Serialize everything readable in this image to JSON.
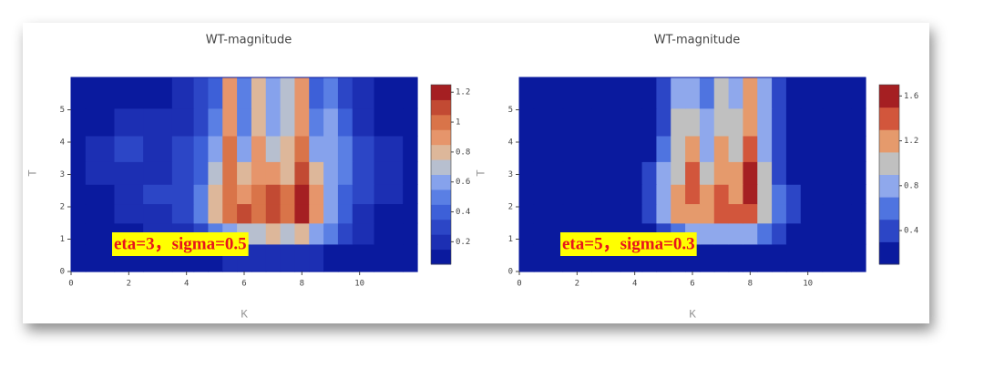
{
  "chart_data": [
    {
      "type": "contour",
      "title": "WT-magnitude",
      "xlabel": "K",
      "ylabel": "T",
      "annotation": "eta=3，sigma=0.5",
      "xlim": [
        0,
        12
      ],
      "ylim": [
        0,
        6
      ],
      "xticks": [
        0,
        2,
        4,
        6,
        8,
        10
      ],
      "yticks": [
        0,
        1,
        2,
        3,
        4,
        5
      ],
      "zlim": [
        0.05,
        1.25
      ],
      "colorbar_ticks": [
        0.2,
        0.4,
        0.6,
        0.8,
        1,
        1.2
      ],
      "colors": [
        "#0a1a9e",
        "#1c2fb3",
        "#2c46c6",
        "#3d60d8",
        "#5a7fe4",
        "#86a2ec",
        "#b7bfcf",
        "#ddb79a",
        "#e6956b",
        "#d97449",
        "#c24a33",
        "#a51f22"
      ],
      "x": [
        0,
        1,
        2,
        3,
        4,
        4.5,
        5,
        5.5,
        6,
        6.5,
        7,
        7.5,
        8,
        8.5,
        9,
        9.5,
        10,
        11,
        12
      ],
      "y": [
        0.5,
        1.2,
        1.8,
        2.4,
        3,
        3.8,
        4.6,
        5.5
      ],
      "z": [
        [
          0.05,
          0.05,
          0.05,
          0.05,
          0.08,
          0.1,
          0.12,
          0.15,
          0.15,
          0.15,
          0.15,
          0.15,
          0.15,
          0.15,
          0.12,
          0.1,
          0.08,
          0.06,
          0.05
        ],
        [
          0.08,
          0.1,
          0.12,
          0.15,
          0.2,
          0.3,
          0.45,
          0.6,
          0.7,
          0.7,
          0.75,
          0.7,
          0.75,
          0.6,
          0.45,
          0.3,
          0.2,
          0.12,
          0.1
        ],
        [
          0.1,
          0.12,
          0.15,
          0.2,
          0.3,
          0.5,
          0.8,
          1.0,
          1.05,
          1.0,
          1.1,
          1.0,
          1.15,
          0.9,
          0.6,
          0.35,
          0.2,
          0.12,
          0.1
        ],
        [
          0.1,
          0.12,
          0.2,
          0.25,
          0.3,
          0.45,
          0.75,
          1.0,
          0.9,
          0.95,
          1.05,
          0.95,
          1.2,
          0.85,
          0.55,
          0.4,
          0.25,
          0.15,
          0.1
        ],
        [
          0.08,
          0.15,
          0.2,
          0.2,
          0.3,
          0.4,
          0.7,
          1.0,
          0.75,
          0.9,
          0.85,
          0.8,
          1.1,
          0.75,
          0.55,
          0.5,
          0.25,
          0.15,
          0.1
        ],
        [
          0.08,
          0.15,
          0.25,
          0.2,
          0.25,
          0.35,
          0.55,
          0.95,
          0.6,
          0.85,
          0.7,
          0.8,
          1.0,
          0.6,
          0.6,
          0.45,
          0.25,
          0.15,
          0.08
        ],
        [
          0.06,
          0.12,
          0.2,
          0.15,
          0.2,
          0.3,
          0.45,
          0.9,
          0.5,
          0.8,
          0.6,
          0.7,
          0.9,
          0.45,
          0.55,
          0.35,
          0.2,
          0.12,
          0.06
        ],
        [
          0.05,
          0.1,
          0.12,
          0.12,
          0.15,
          0.25,
          0.4,
          0.85,
          0.45,
          0.75,
          0.55,
          0.65,
          0.85,
          0.4,
          0.5,
          0.3,
          0.15,
          0.1,
          0.05
        ]
      ]
    },
    {
      "type": "contour",
      "title": "WT-magnitude",
      "xlabel": "K",
      "ylabel": "T",
      "annotation": "eta=5，sigma=0.3",
      "xlim": [
        0,
        12
      ],
      "ylim": [
        0,
        6
      ],
      "xticks": [
        0,
        2,
        4,
        6,
        8,
        10
      ],
      "yticks": [
        0,
        1,
        2,
        3,
        4,
        5
      ],
      "zlim": [
        0.1,
        1.7
      ],
      "colorbar_ticks": [
        0.4,
        0.8,
        1.2,
        1.6
      ],
      "colors": [
        "#0a1a9e",
        "#2c46c6",
        "#4f74e0",
        "#8fa8ec",
        "#c0c0c0",
        "#e59a6c",
        "#d2563c",
        "#a51f22"
      ],
      "x": [
        0,
        1,
        2,
        3,
        4,
        4.5,
        5,
        5.5,
        6,
        6.5,
        7,
        7.5,
        8,
        8.5,
        9,
        9.5,
        10,
        11,
        12
      ],
      "y": [
        0.5,
        1.2,
        1.8,
        2.4,
        3,
        3.8,
        4.6,
        5.5
      ],
      "z": [
        [
          0.05,
          0.05,
          0.05,
          0.05,
          0.06,
          0.08,
          0.1,
          0.12,
          0.14,
          0.14,
          0.15,
          0.15,
          0.14,
          0.12,
          0.1,
          0.08,
          0.06,
          0.05,
          0.05
        ],
        [
          0.08,
          0.1,
          0.12,
          0.15,
          0.18,
          0.25,
          0.4,
          0.6,
          0.75,
          0.8,
          0.85,
          0.85,
          0.8,
          0.6,
          0.4,
          0.25,
          0.15,
          0.1,
          0.08
        ],
        [
          0.08,
          0.1,
          0.12,
          0.15,
          0.2,
          0.35,
          0.7,
          1.1,
          1.2,
          1.2,
          1.3,
          1.3,
          1.4,
          1.0,
          0.6,
          0.3,
          0.15,
          0.1,
          0.08
        ],
        [
          0.08,
          0.1,
          0.12,
          0.15,
          0.2,
          0.35,
          0.75,
          1.1,
          1.35,
          1.15,
          1.3,
          1.2,
          1.65,
          1.0,
          0.5,
          0.3,
          0.15,
          0.1,
          0.08
        ],
        [
          0.08,
          0.1,
          0.12,
          0.15,
          0.18,
          0.3,
          0.7,
          1.0,
          1.3,
          0.95,
          1.2,
          1.1,
          1.6,
          0.9,
          0.45,
          0.25,
          0.15,
          0.1,
          0.08
        ],
        [
          0.08,
          0.12,
          0.15,
          0.15,
          0.15,
          0.25,
          0.55,
          0.95,
          1.1,
          0.8,
          1.1,
          1.0,
          1.4,
          0.85,
          0.4,
          0.2,
          0.15,
          0.12,
          0.08
        ],
        [
          0.06,
          0.1,
          0.12,
          0.12,
          0.12,
          0.2,
          0.45,
          0.9,
          0.9,
          0.7,
          1.0,
          0.9,
          1.2,
          0.8,
          0.35,
          0.2,
          0.12,
          0.1,
          0.06
        ],
        [
          0.05,
          0.08,
          0.1,
          0.1,
          0.1,
          0.2,
          0.4,
          0.85,
          0.8,
          0.6,
          0.9,
          0.85,
          1.1,
          0.8,
          0.3,
          0.15,
          0.1,
          0.08,
          0.05
        ]
      ]
    }
  ]
}
